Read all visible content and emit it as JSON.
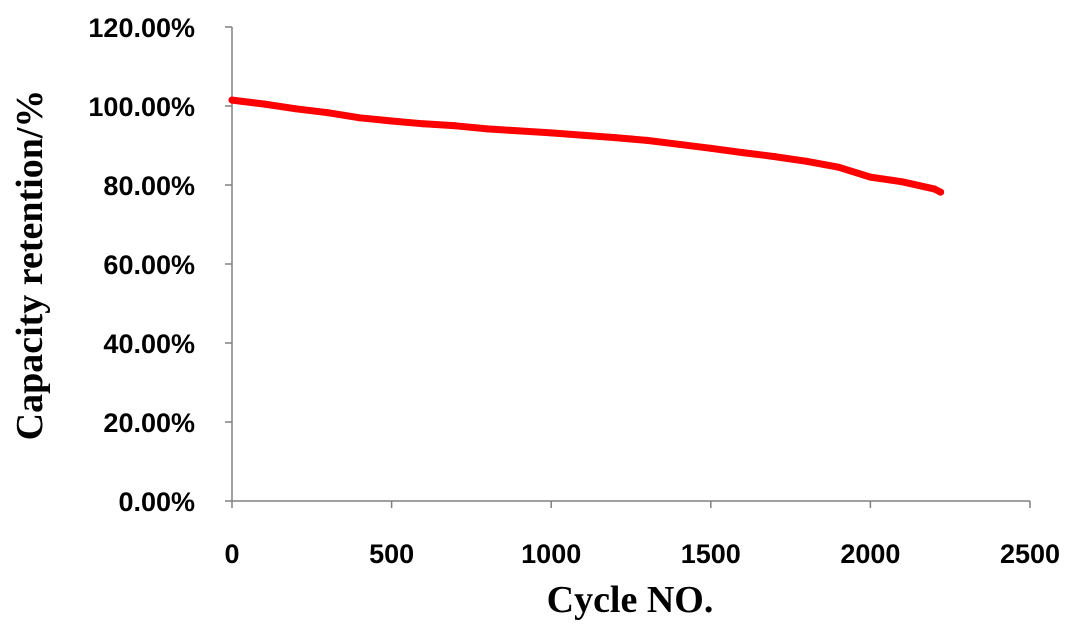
{
  "chart_data": {
    "type": "line",
    "title": "",
    "xlabel": "Cycle NO.",
    "ylabel": "Capacity retention/%",
    "xlim": [
      0,
      2500
    ],
    "ylim": [
      0,
      1.2
    ],
    "x_ticks": [
      "0",
      "500",
      "1000",
      "1500",
      "2000",
      "2500"
    ],
    "y_ticks": [
      "0.00%",
      "20.00%",
      "40.00%",
      "60.00%",
      "80.00%",
      "100.00%",
      "120.00%"
    ],
    "grid": false,
    "legend": "none",
    "series": [
      {
        "color": "#ff0000",
        "x": [
          0,
          100,
          200,
          300,
          400,
          500,
          600,
          700,
          800,
          900,
          1000,
          1100,
          1200,
          1300,
          1400,
          1500,
          1600,
          1700,
          1800,
          1900,
          2000,
          2100,
          2200,
          2220
        ],
        "y": [
          1.015,
          1.005,
          0.993,
          0.983,
          0.97,
          0.962,
          0.955,
          0.95,
          0.942,
          0.937,
          0.932,
          0.926,
          0.92,
          0.913,
          0.903,
          0.893,
          0.882,
          0.872,
          0.86,
          0.845,
          0.82,
          0.808,
          0.79,
          0.782
        ]
      }
    ]
  }
}
